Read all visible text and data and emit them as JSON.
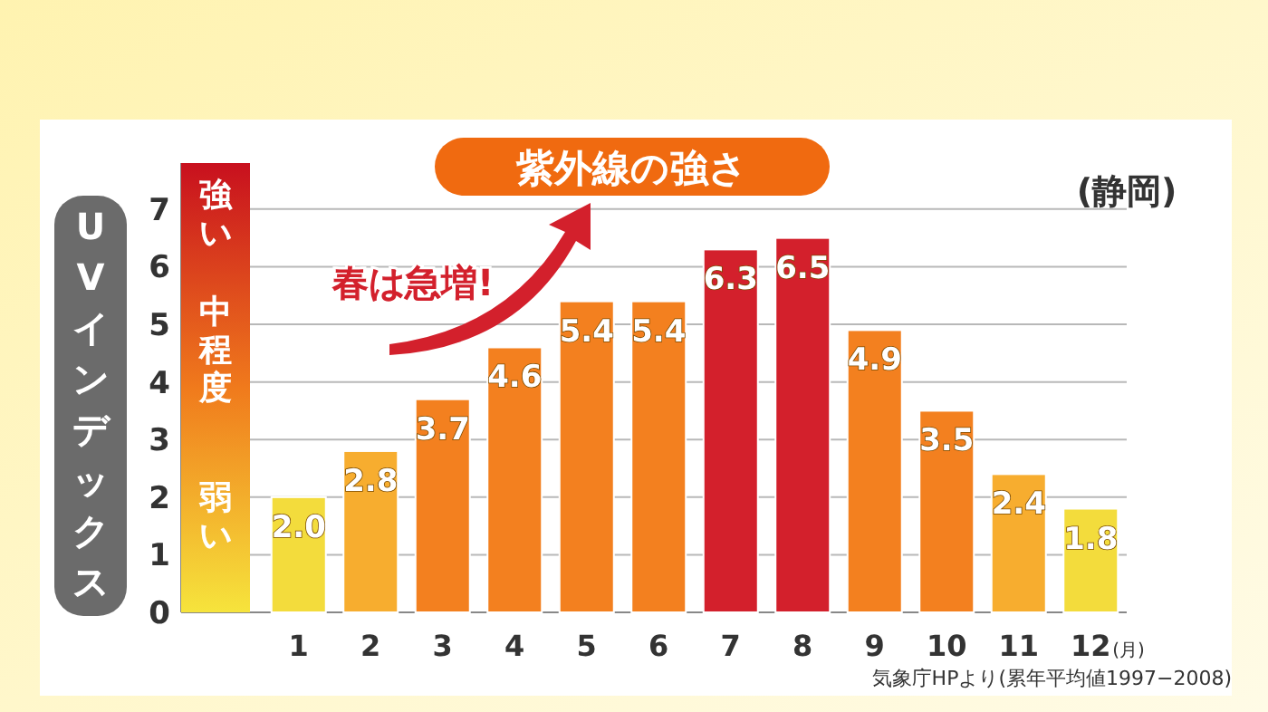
{
  "chart_data": {
    "type": "bar",
    "title": "紫外線の強さ",
    "subtitle": "(静岡)",
    "ylabel": "UVインデックス",
    "xlabel": "(月)",
    "categories": [
      "1",
      "2",
      "3",
      "4",
      "5",
      "6",
      "7",
      "8",
      "9",
      "10",
      "11",
      "12"
    ],
    "values": [
      2.0,
      2.8,
      3.7,
      4.6,
      5.4,
      5.4,
      6.3,
      6.5,
      4.9,
      3.5,
      2.4,
      1.8
    ],
    "colors": [
      "#f3dc3c",
      "#f7ad2f",
      "#f3801f",
      "#f3801f",
      "#f3801f",
      "#f3801f",
      "#d3202c",
      "#d3202c",
      "#f3801f",
      "#f3801f",
      "#f7ad2f",
      "#f3dc3c"
    ],
    "value_labels": [
      "2.0",
      "2.8",
      "3.7",
      "4.6",
      "5.4",
      "5.4",
      "6.3",
      "6.5",
      "4.9",
      "3.5",
      "2.4",
      "1.8"
    ],
    "ylim": [
      0,
      7.8
    ],
    "yticks": [
      0,
      1,
      2,
      3,
      4,
      5,
      6,
      7
    ],
    "grid": "y",
    "annotations": [
      "春は急増!",
      "強い",
      "中程度",
      "弱い",
      "気象庁HPより(累年平均値1997−2008)"
    ]
  }
}
